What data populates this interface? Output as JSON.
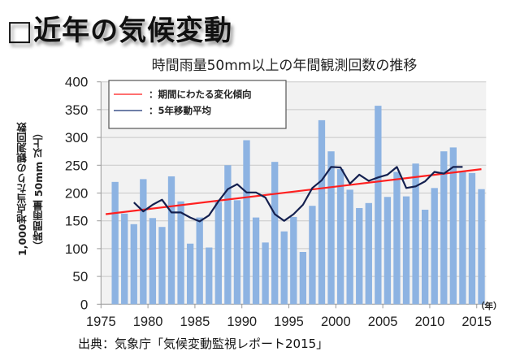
{
  "slide": {
    "title": "□近年の気候変動",
    "source": "出典：気象庁「気候変動監視レポート2015」"
  },
  "chart_data": {
    "type": "bar",
    "title": "時間雨量50mm以上の年間観測回数の推移",
    "ylabel_line1": "1,000地点当たりの観測回数",
    "ylabel_line2": "（時間雨量 50mm 以上）",
    "xlabel": "（年）",
    "ylim": [
      0,
      400
    ],
    "yticks": [
      0,
      50,
      100,
      150,
      200,
      250,
      300,
      350,
      400
    ],
    "xlim": [
      1975,
      2015
    ],
    "xticks": [
      1975,
      1980,
      1985,
      1990,
      1995,
      2000,
      2005,
      2010,
      2015
    ],
    "grid": true,
    "legend_position": "top-left",
    "colors": {
      "bar": "#8db3e2",
      "trend": "#ff2020",
      "moving_average": "#14204f",
      "grid": "#c8c8c8",
      "plot_bg": "#f2f2f2"
    },
    "years": [
      1976,
      1977,
      1978,
      1979,
      1980,
      1981,
      1982,
      1983,
      1984,
      1985,
      1986,
      1987,
      1988,
      1989,
      1990,
      1991,
      1992,
      1993,
      1994,
      1995,
      1996,
      1997,
      1998,
      1999,
      2000,
      2001,
      2002,
      2003,
      2004,
      2005,
      2006,
      2007,
      2008,
      2009,
      2010,
      2011,
      2012,
      2013,
      2014,
      2015
    ],
    "series": [
      {
        "name": "年間観測回数",
        "type": "bar",
        "values": [
          220,
          163,
          144,
          225,
          155,
          139,
          230,
          185,
          109,
          156,
          102,
          184,
          250,
          187,
          295,
          156,
          111,
          256,
          131,
          157,
          94,
          177,
          331,
          275,
          243,
          206,
          173,
          182,
          357,
          193,
          238,
          194,
          253,
          170,
          209,
          275,
          282,
          238,
          236,
          207
        ]
      },
      {
        "name": "5年移動平均",
        "legend_label": "：5年移動平均",
        "type": "line",
        "x": [
          1978,
          1979,
          1980,
          1981,
          1982,
          1983,
          1984,
          1985,
          1986,
          1987,
          1988,
          1989,
          1990,
          1991,
          1992,
          1993,
          1994,
          1995,
          1996,
          1997,
          1998,
          1999,
          2000,
          2001,
          2002,
          2003,
          2004,
          2005,
          2006,
          2007,
          2008,
          2009,
          2010,
          2011,
          2012,
          2013
        ],
        "values": [
          183,
          167,
          179,
          188,
          165,
          165,
          156,
          149,
          160,
          185,
          207,
          216,
          201,
          201,
          192,
          162,
          150,
          162,
          179,
          209,
          223,
          247,
          246,
          217,
          233,
          222,
          228,
          233,
          247,
          209,
          212,
          221,
          238,
          235,
          247,
          247
        ]
      },
      {
        "name": "期間にわたる変化傾向",
        "legend_label": "：期間にわたる変化傾向",
        "type": "line",
        "x": [
          1975,
          2015
        ],
        "values": [
          162,
          243
        ]
      }
    ]
  }
}
